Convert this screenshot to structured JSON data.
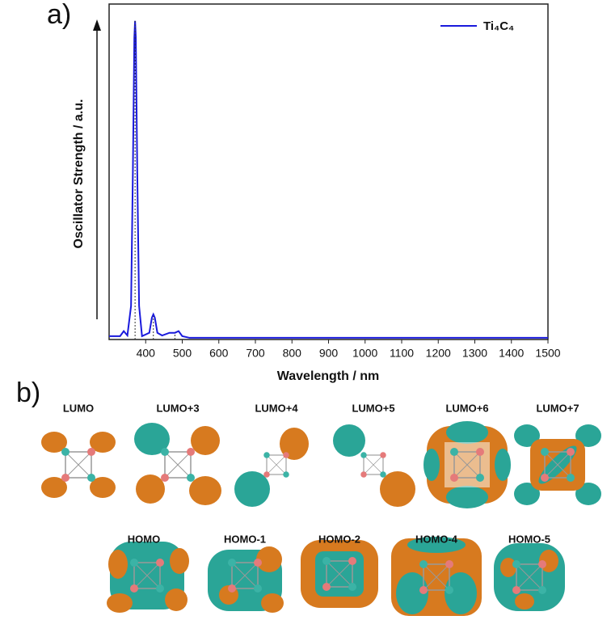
{
  "panels": {
    "a": "a)",
    "b": "b)"
  },
  "chart_data": {
    "type": "line",
    "xlabel": "Wavelength / nm",
    "ylabel": "Oscillator Strength / a.u.",
    "x": [
      300,
      330,
      340,
      350,
      360,
      365,
      369,
      371,
      373,
      377,
      382,
      390,
      410,
      417,
      421,
      425,
      432,
      445,
      465,
      480,
      490,
      500,
      520,
      1500
    ],
    "series": [
      {
        "name": "Ti₄C₄",
        "color": "#1a1adc",
        "values": [
          0.01,
          0.01,
          0.025,
          0.012,
          0.1,
          0.5,
          0.9,
          0.95,
          0.9,
          0.5,
          0.1,
          0.01,
          0.02,
          0.065,
          0.075,
          0.065,
          0.02,
          0.012,
          0.02,
          0.02,
          0.025,
          0.01,
          0.005,
          0.005
        ]
      }
    ],
    "sticks": {
      "x": [
        371,
        421,
        480
      ],
      "values": [
        0.95,
        0.07,
        0.02
      ]
    },
    "xlim": [
      300,
      1500
    ],
    "xticks": [
      400,
      500,
      600,
      700,
      800,
      900,
      1000,
      1100,
      1200,
      1300,
      1400,
      1500
    ],
    "ylim": [
      0,
      1
    ],
    "legend": "upper right"
  },
  "orbitals": {
    "row1": [
      "LUMO",
      "LUMO+3",
      "LUMO+4",
      "LUMO+5",
      "LUMO+6",
      "LUMO+7"
    ],
    "row2": [
      "HOMO",
      "HOMO-1",
      "HOMO-2",
      "HOMO-4",
      "HOMO-5"
    ]
  }
}
